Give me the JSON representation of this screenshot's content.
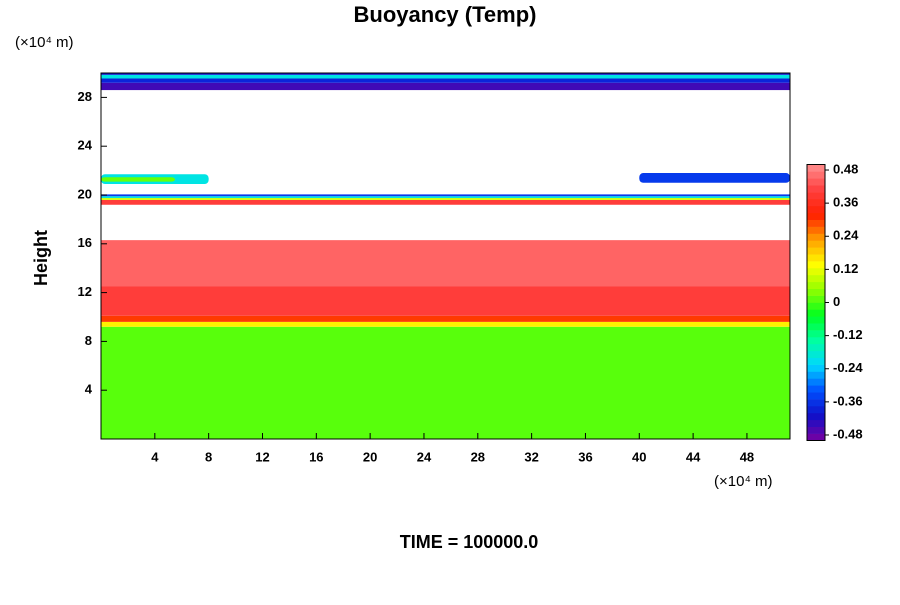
{
  "chart_data": {
    "type": "contour",
    "title": "Buoyancy (Temp)",
    "ylabel": "Height",
    "yunit": "(×10⁴ m)",
    "xunit": "(×10⁴ m)",
    "footer": "TIME = 100000.0",
    "xlim": [
      0,
      51.2
    ],
    "ylim": [
      0,
      30
    ],
    "xticks": [
      4,
      8,
      12,
      16,
      20,
      24,
      28,
      32,
      36,
      40,
      44,
      48
    ],
    "yticks": [
      4,
      8,
      12,
      16,
      20,
      24,
      28
    ],
    "clim": [
      -0.5,
      0.5
    ],
    "cticks": [
      0.48,
      0.36,
      0.24,
      0.12,
      0,
      -0.12,
      -0.24,
      -0.36,
      -0.48
    ],
    "colormap": [
      "#7a00a0",
      "#1010c8",
      "#0050ff",
      "#00d8ff",
      "#00ffa0",
      "#00ff20",
      "#90ff00",
      "#ffff00",
      "#ffa000",
      "#ff2000",
      "#ff4040",
      "#ff9090"
    ],
    "regions": [
      {
        "x": [
          0,
          51.2
        ],
        "y": [
          0,
          9.2
        ],
        "value": 0.01
      },
      {
        "x": [
          0,
          51.2
        ],
        "y": [
          9.2,
          9.6
        ],
        "value": 0.15
      },
      {
        "x": [
          0,
          51.2
        ],
        "y": [
          9.6,
          10.1
        ],
        "value": 0.3
      },
      {
        "x": [
          0,
          51.2
        ],
        "y": [
          10.1,
          12.5
        ],
        "value": 0.4
      },
      {
        "x": [
          0,
          51.2
        ],
        "y": [
          12.5,
          16.3
        ],
        "value": 0.45
      },
      {
        "x": [
          0,
          51.2
        ],
        "y": [
          19.2,
          19.6
        ],
        "value": 0.4
      },
      {
        "x": [
          0,
          51.2
        ],
        "y": [
          19.6,
          19.75
        ],
        "value": 0.1
      },
      {
        "x": [
          0,
          51.2
        ],
        "y": [
          19.75,
          19.9
        ],
        "value": -0.2
      },
      {
        "x": [
          0,
          51.2
        ],
        "y": [
          19.9,
          20.05
        ],
        "value": -0.35
      },
      {
        "x": [
          0,
          8
        ],
        "y": [
          20.9,
          21.7
        ],
        "value": -0.2
      },
      {
        "x": [
          0,
          5.5
        ],
        "y": [
          21.1,
          21.45
        ],
        "value": 0.02
      },
      {
        "x": [
          40,
          51.2
        ],
        "y": [
          21,
          21.8
        ],
        "value": -0.35
      },
      {
        "x": [
          0,
          51.2
        ],
        "y": [
          28.6,
          29.2
        ],
        "value": -0.45
      },
      {
        "x": [
          0,
          51.2
        ],
        "y": [
          29.2,
          29.55
        ],
        "value": -0.38
      },
      {
        "x": [
          0,
          51.2
        ],
        "y": [
          29.55,
          29.85
        ],
        "value": -0.2
      },
      {
        "x": [
          0,
          51.2
        ],
        "y": [
          29.85,
          30
        ],
        "value": -0.4
      }
    ]
  }
}
